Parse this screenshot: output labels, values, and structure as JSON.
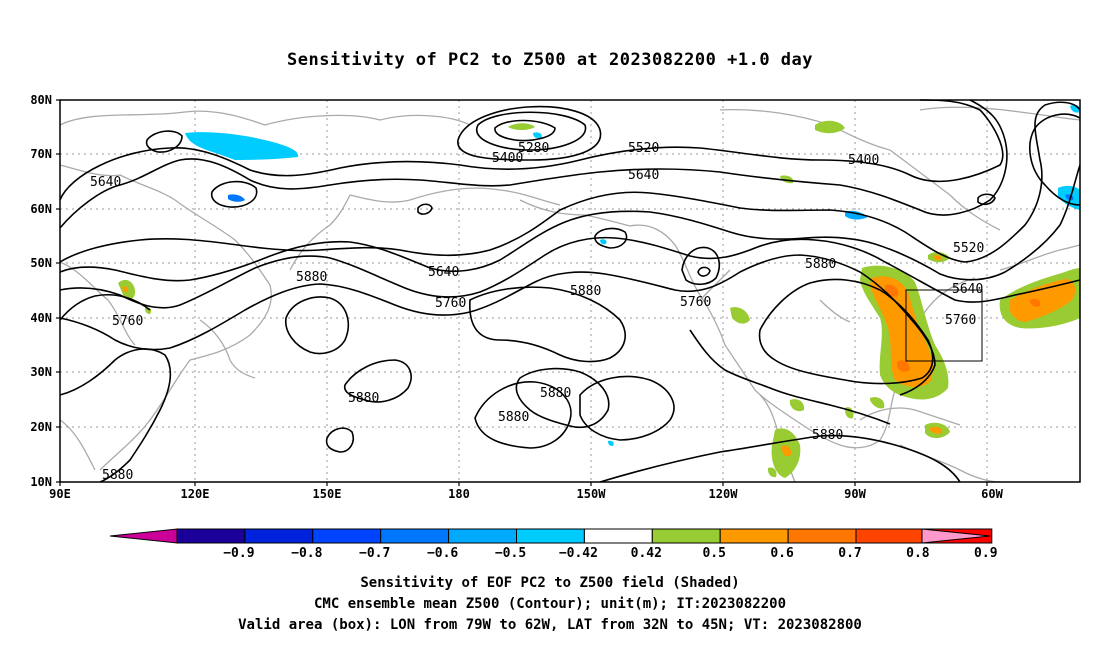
{
  "title": "Sensitivity of PC2 to Z500 at 2023082200 +1.0 day",
  "map": {
    "lon_ticks": [
      "90E",
      "120E",
      "150E",
      "180",
      "150W",
      "120W",
      "90W",
      "60W"
    ],
    "lat_ticks": [
      "80N",
      "70N",
      "60N",
      "50N",
      "40N",
      "30N",
      "20N",
      "10N"
    ],
    "contour_labels": [
      "5280",
      "5400",
      "5520",
      "5640",
      "5400",
      "5640",
      "5640",
      "5760",
      "5880",
      "5880",
      "5760",
      "5760",
      "5880",
      "5880",
      "5880",
      "5880",
      "5880",
      "5880",
      "5640",
      "5520",
      "5760",
      "5880",
      "5880"
    ],
    "valid_box": {
      "lon_west": -79,
      "lon_east": -62,
      "lat_south": 32,
      "lat_north": 45
    }
  },
  "colorbar": {
    "labels": [
      "−0.9",
      "−0.8",
      "−0.7",
      "−0.6",
      "−0.5",
      "−0.42",
      "0.42",
      "0.5",
      "0.6",
      "0.7",
      "0.8",
      "0.9"
    ],
    "colors": [
      "#1a0099",
      "#0022dd",
      "#0044ff",
      "#0077ff",
      "#00aaff",
      "#00ccff",
      "#ffffff",
      "#99cc33",
      "#ff9900",
      "#ff7700",
      "#ff4400",
      "#ff0000"
    ],
    "left_tip": "#cc0099",
    "right_tip": "#ff99cc"
  },
  "captions": [
    "Sensitivity of EOF PC2 to Z500 field (Shaded)",
    "CMC ensemble mean Z500 (Contour); unit(m); IT:2023082200",
    "Valid area (box): LON from 79W to 62W, LAT from 32N to 45N; VT: 2023082800"
  ]
}
